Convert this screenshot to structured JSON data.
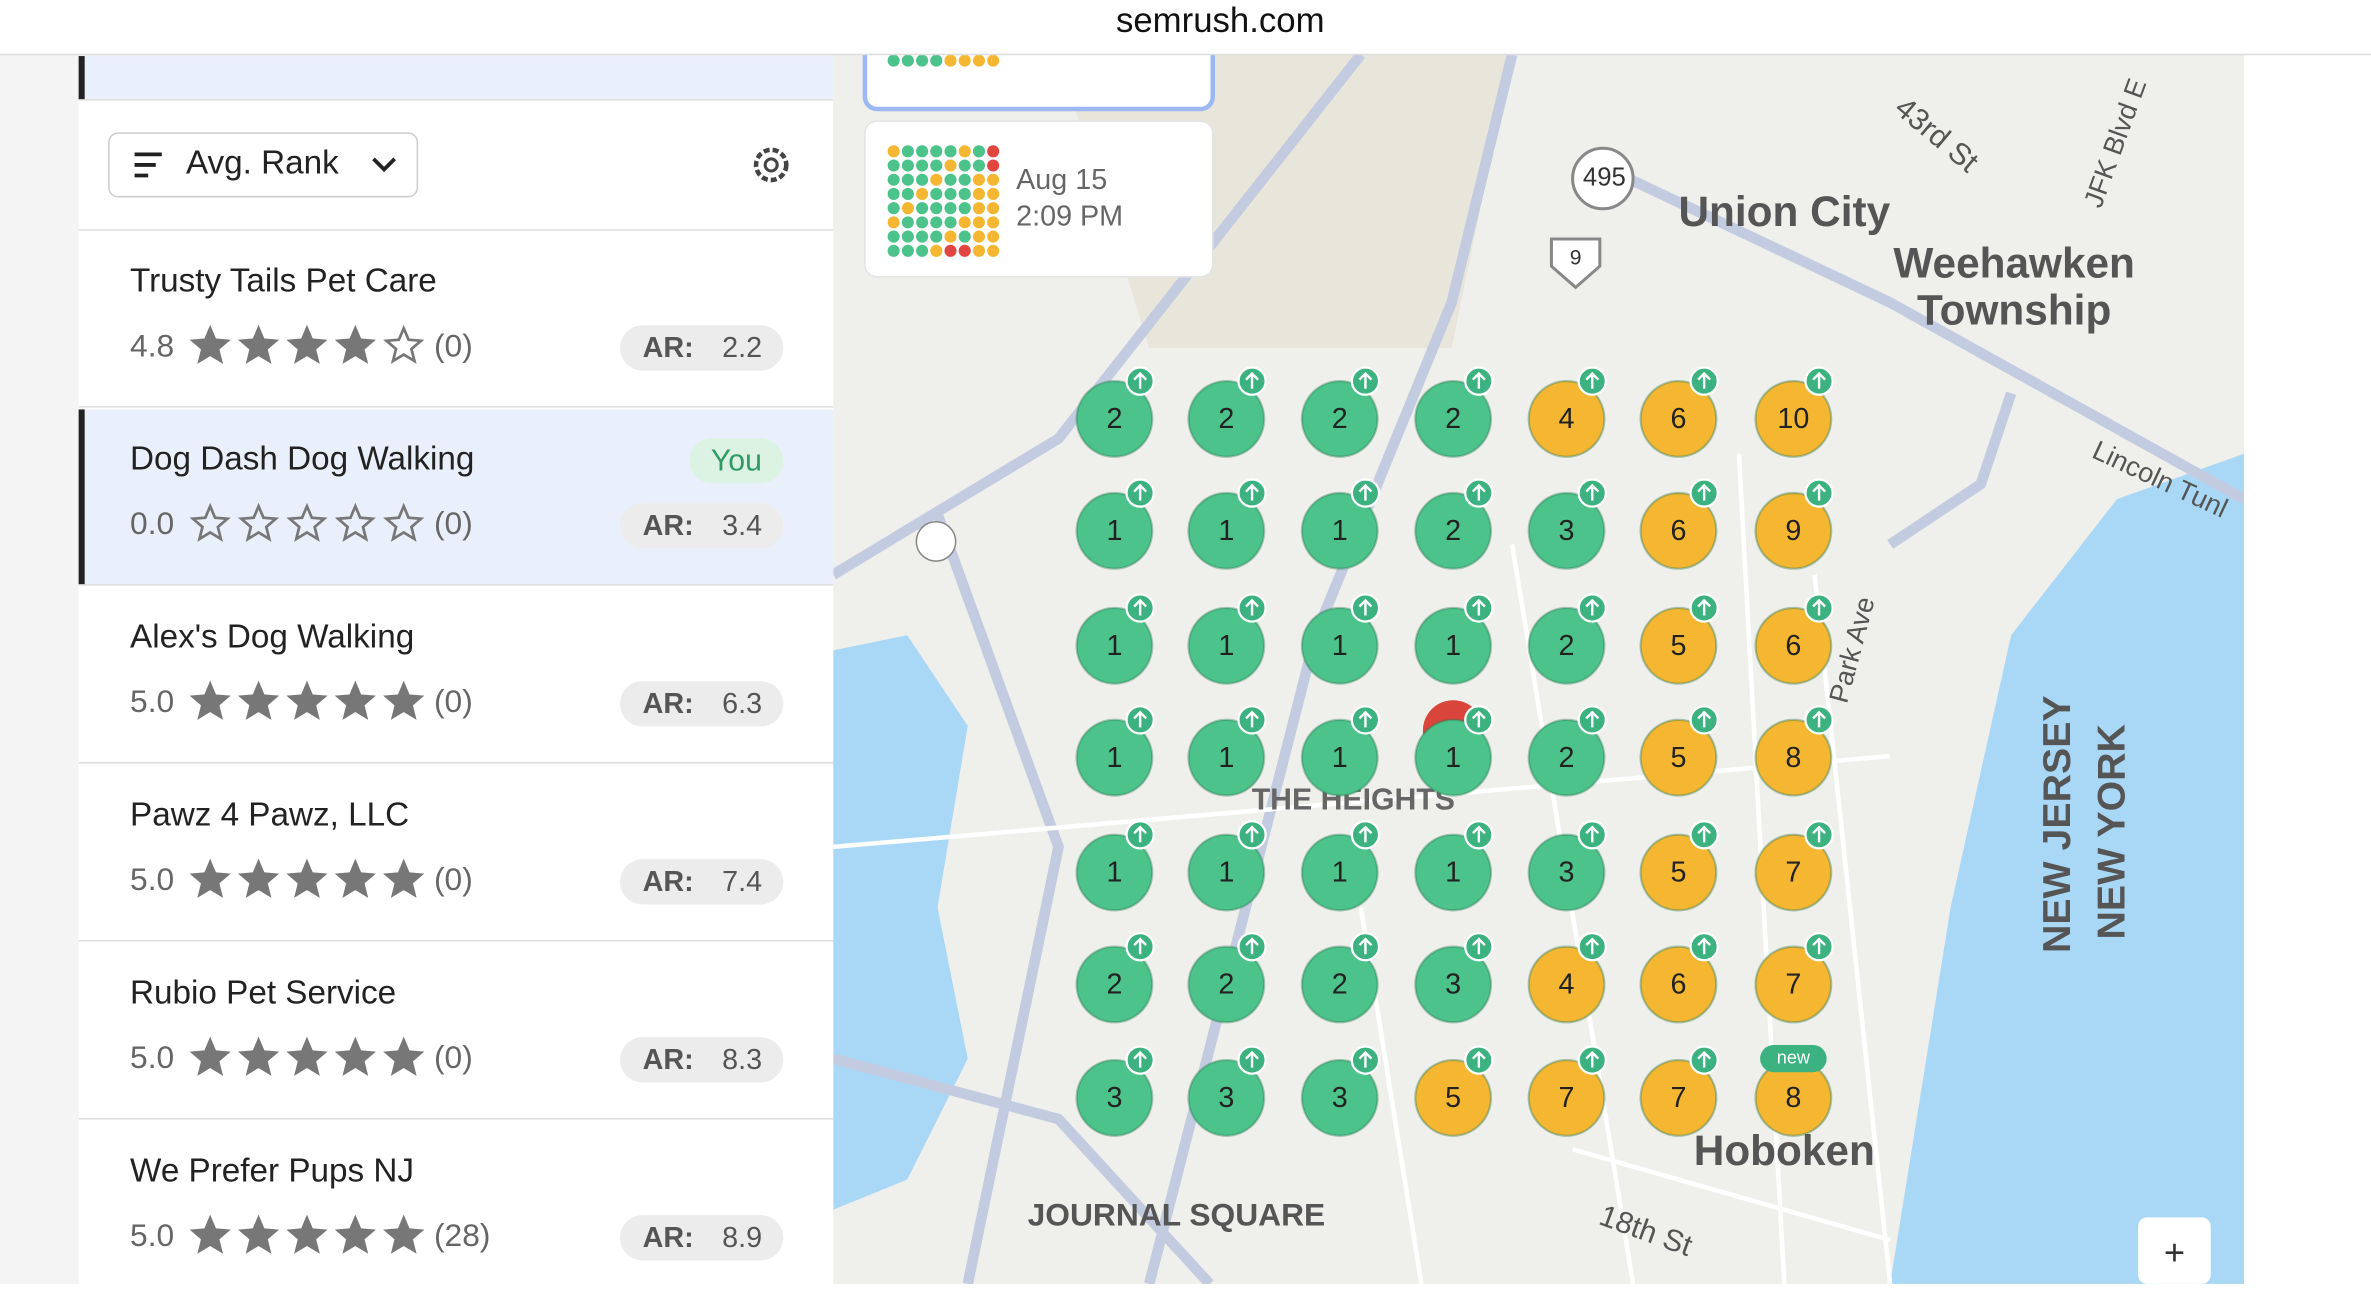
{
  "header": {
    "url": "semrush.com"
  },
  "sort": {
    "label": "Avg. Rank"
  },
  "history": [
    {
      "date": "Aug 15",
      "time": "2:09 PM"
    }
  ],
  "listings": [
    {
      "name": "Trusty Tails Pet Care",
      "rating": "4.8",
      "reviews": "(0)",
      "ar_label": "AR:",
      "ar": "2.2"
    },
    {
      "name": "Dog Dash Dog Walking",
      "rating": "0.0",
      "reviews": "(0)",
      "ar_label": "AR:",
      "ar": "3.4",
      "badge": "You"
    },
    {
      "name": "Alex's Dog Walking",
      "rating": "5.0",
      "reviews": "(0)",
      "ar_label": "AR:",
      "ar": "6.3"
    },
    {
      "name": "Pawz 4 Pawz, LLC",
      "rating": "5.0",
      "reviews": "(0)",
      "ar_label": "AR:",
      "ar": "7.4"
    },
    {
      "name": "Rubio Pet Service",
      "rating": "5.0",
      "reviews": "(0)",
      "ar_label": "AR:",
      "ar": "8.3"
    },
    {
      "name": "We Prefer Pups NJ",
      "rating": "5.0",
      "reviews": "(28)",
      "ar_label": "AR:",
      "ar": "8.9"
    }
  ],
  "grid": {
    "rows": [
      [
        {
          "rank": "2",
          "color": "#4cc38a"
        },
        {
          "rank": "2",
          "color": "#4cc38a"
        },
        {
          "rank": "2",
          "color": "#4cc38a"
        },
        {
          "rank": "2",
          "color": "#4cc38a"
        },
        {
          "rank": "4",
          "color": "#f5b731"
        },
        {
          "rank": "6",
          "color": "#f5b731"
        },
        {
          "rank": "10",
          "color": "#f5b731"
        }
      ],
      [
        {
          "rank": "1",
          "color": "#4cc38a"
        },
        {
          "rank": "1",
          "color": "#4cc38a"
        },
        {
          "rank": "1",
          "color": "#4cc38a"
        },
        {
          "rank": "2",
          "color": "#4cc38a"
        },
        {
          "rank": "3",
          "color": "#4cc38a"
        },
        {
          "rank": "6",
          "color": "#f5b731"
        },
        {
          "rank": "9",
          "color": "#f5b731"
        }
      ],
      [
        {
          "rank": "1",
          "color": "#4cc38a"
        },
        {
          "rank": "1",
          "color": "#4cc38a"
        },
        {
          "rank": "1",
          "color": "#4cc38a"
        },
        {
          "rank": "1",
          "color": "#4cc38a"
        },
        {
          "rank": "2",
          "color": "#4cc38a"
        },
        {
          "rank": "5",
          "color": "#f5b731"
        },
        {
          "rank": "6",
          "color": "#f5b731"
        }
      ],
      [
        {
          "rank": "1",
          "color": "#4cc38a"
        },
        {
          "rank": "1",
          "color": "#4cc38a"
        },
        {
          "rank": "1",
          "color": "#4cc38a"
        },
        {
          "rank": "1",
          "color": "#4cc38a"
        },
        {
          "rank": "2",
          "color": "#4cc38a"
        },
        {
          "rank": "5",
          "color": "#f5b731"
        },
        {
          "rank": "8",
          "color": "#f5b731"
        }
      ],
      [
        {
          "rank": "1",
          "color": "#4cc38a"
        },
        {
          "rank": "1",
          "color": "#4cc38a"
        },
        {
          "rank": "1",
          "color": "#4cc38a"
        },
        {
          "rank": "1",
          "color": "#4cc38a"
        },
        {
          "rank": "3",
          "color": "#4cc38a"
        },
        {
          "rank": "5",
          "color": "#f5b731"
        },
        {
          "rank": "7",
          "color": "#f5b731"
        }
      ],
      [
        {
          "rank": "2",
          "color": "#4cc38a"
        },
        {
          "rank": "2",
          "color": "#4cc38a"
        },
        {
          "rank": "2",
          "color": "#4cc38a"
        },
        {
          "rank": "3",
          "color": "#4cc38a"
        },
        {
          "rank": "4",
          "color": "#f5b731"
        },
        {
          "rank": "6",
          "color": "#f5b731"
        },
        {
          "rank": "7",
          "color": "#f5b731"
        }
      ],
      [
        {
          "rank": "3",
          "color": "#4cc38a"
        },
        {
          "rank": "3",
          "color": "#4cc38a"
        },
        {
          "rank": "3",
          "color": "#4cc38a"
        },
        {
          "rank": "5",
          "color": "#f5b731"
        },
        {
          "rank": "7",
          "color": "#f5b731"
        },
        {
          "rank": "7",
          "color": "#f5b731"
        },
        {
          "rank": "8",
          "color": "#f5b731",
          "badge": "new"
        }
      ]
    ]
  },
  "map_labels": [
    "Union City",
    "Weehawken",
    "Township",
    "THE HEIGHTS",
    "JOURNAL SQUARE",
    "Hoboken",
    "NEW JERSEY",
    "NEW YORK",
    "43rd St",
    "18th St",
    "495",
    "9",
    "Lincoln Tunl",
    "Park Ave",
    "JFK Blvd E"
  ]
}
